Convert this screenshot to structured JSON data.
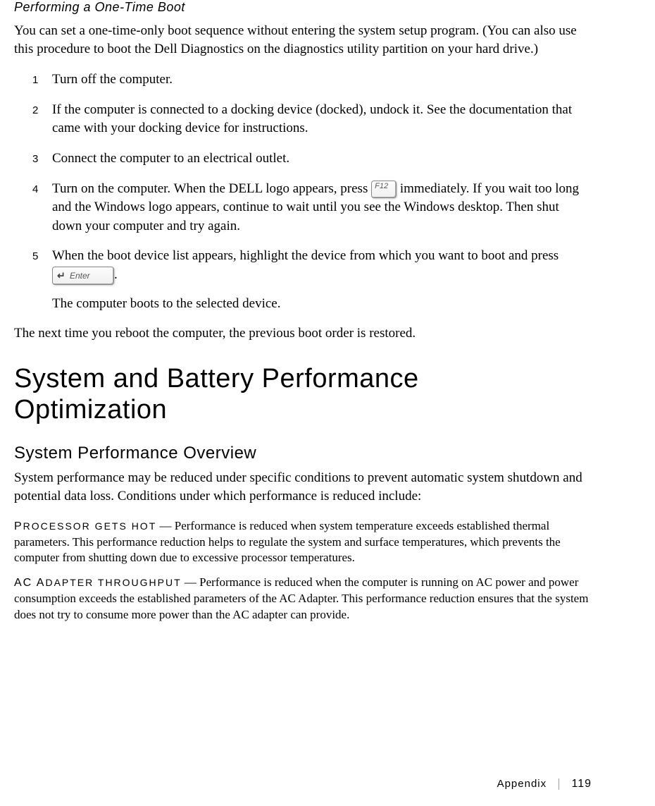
{
  "section": {
    "subheading": "Performing a One-Time Boot",
    "intro": "You can set a one-time-only boot sequence without entering the system setup program. (You can also use this procedure to boot the Dell Diagnostics on the diagnostics utility partition on your hard drive.)",
    "steps": [
      {
        "num": "1",
        "text": "Turn off the computer."
      },
      {
        "num": "2",
        "text": "If the computer is connected to a docking device (docked), undock it. See the documentation that came with your docking device for instructions."
      },
      {
        "num": "3",
        "text": "Connect the computer to an electrical outlet."
      },
      {
        "num": "4",
        "pre": "Turn on the computer. When the DELL logo appears, press ",
        "key": "F12",
        "post": " immediately. If you wait too long and the Windows logo appears, continue to wait until you see the Windows desktop. Then shut down your computer and try again."
      },
      {
        "num": "5",
        "pre": "When the boot device list appears, highlight the device from which you want to boot and press ",
        "key": "Enter",
        "post": ".",
        "sub": "The computer boots to the selected device."
      }
    ],
    "outro": "The next time you reboot the computer, the previous boot order is restored."
  },
  "perf": {
    "h1a": "System and Battery Performance",
    "h1b": "Optimization",
    "h2": "System Performance Overview",
    "intro": "System performance may be reduced under specific conditions to prevent automatic system shutdown and potential data loss. Conditions under which performance is reduced include:",
    "defs": [
      {
        "term_first": "P",
        "term_rest": "ROCESSOR GETS HOT",
        "dash": " — ",
        "body": " Performance is reduced when system temperature exceeds established thermal parameters. This performance reduction helps to regulate the system and surface temperatures, which prevents the computer from shutting down due to excessive processor temperatures."
      },
      {
        "term_first": "AC A",
        "term_rest": "DAPTER THROUGHPUT",
        "dash": " — ",
        "body": " Performance is reduced when the computer is running on AC power and power consumption exceeds the established parameters of the AC Adapter. This performance reduction ensures that the system does not try to consume more power than the AC adapter can provide."
      }
    ]
  },
  "footer": {
    "section": "Appendix",
    "page": "119"
  }
}
